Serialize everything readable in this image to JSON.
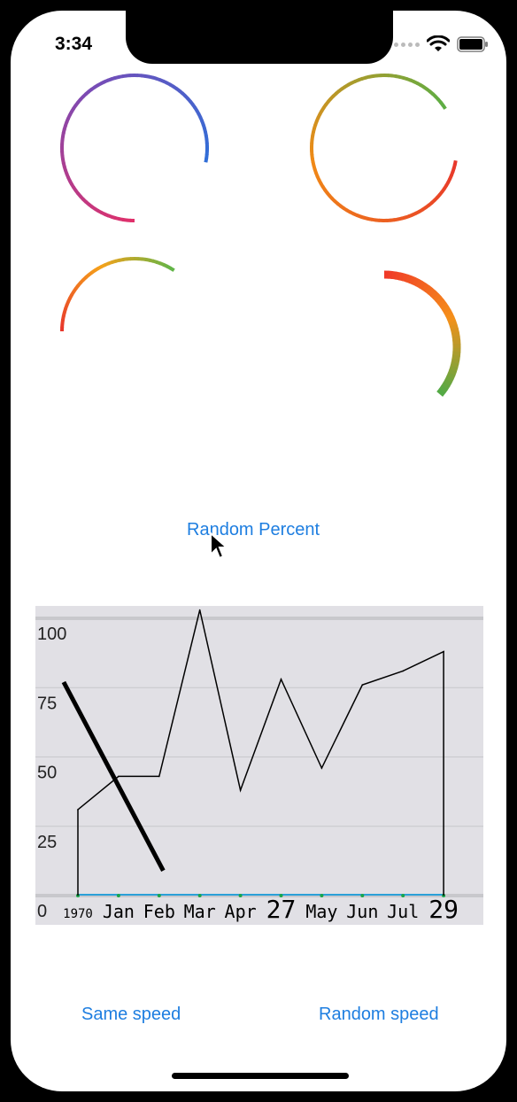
{
  "status_bar": {
    "time": "3:34"
  },
  "icons": {
    "wifi": "wifi-icon",
    "battery": "battery-icon",
    "cellular": "cellular-dots-icon",
    "cursor": "mouse-pointer-icon"
  },
  "buttons": {
    "random_percent": "Random Percent",
    "same_speed": "Same speed",
    "random_speed": "Random speed"
  },
  "rings": [
    {
      "name": "ring-1",
      "percent": 0.78,
      "colors": [
        "#e0306a",
        "#7a4bb5",
        "#2f6fd8"
      ]
    },
    {
      "name": "ring-2",
      "percent": 0.88,
      "colors": [
        "#e8372b",
        "#f08a16",
        "#5aae45"
      ]
    },
    {
      "name": "ring-3",
      "percent": 0.34,
      "colors": [
        "#e8372b",
        "#f5a21a",
        "#5ab64a"
      ]
    },
    {
      "name": "ring-4",
      "percent": 0.36,
      "colors": [
        "#f03a28",
        "#f5901a",
        "#4cab47"
      ]
    }
  ],
  "chart_data": {
    "type": "line",
    "ylim": [
      0,
      100
    ],
    "y_ticks": [
      "100",
      "75",
      "50",
      "25",
      "0"
    ],
    "x_tick_labels": [
      {
        "text": "1970",
        "size": "small"
      },
      {
        "text": "Jan",
        "size": "normal"
      },
      {
        "text": "Feb",
        "size": "normal"
      },
      {
        "text": "Mar",
        "size": "normal"
      },
      {
        "text": "Apr",
        "size": "normal"
      },
      {
        "text": "27",
        "size": "large"
      },
      {
        "text": "May",
        "size": "normal"
      },
      {
        "text": "Jun",
        "size": "normal"
      },
      {
        "text": "Jul",
        "size": "normal"
      },
      {
        "text": "29",
        "size": "large"
      }
    ],
    "series": [
      {
        "values": [
          31,
          43,
          43,
          103,
          38,
          78,
          46,
          76,
          81,
          88
        ]
      },
      {
        "x_index_range": [
          -0.35,
          2.1
        ],
        "values": [
          77,
          9
        ]
      }
    ],
    "grid": true,
    "colors": {
      "background": "#e1e0e5",
      "grid": "#c8c8cc",
      "baseline": "#2aa0d8",
      "markers": "#1aa64a",
      "line": "#000000"
    }
  }
}
